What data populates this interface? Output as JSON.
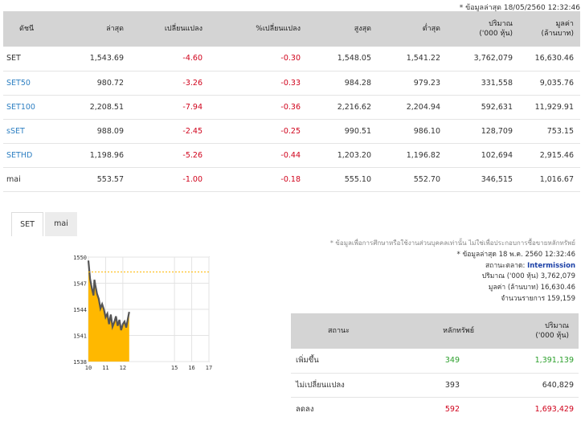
{
  "header_stamp": "* ข้อมูลล่าสุด 18/05/2560 12:32:46",
  "index_table": {
    "columns": [
      "ดัชนี",
      "ล่าสุด",
      "เปลี่ยนแปลง",
      "%เปลี่ยนแปลง",
      "สูงสุด",
      "ต่ำสุด",
      "ปริมาณ\n('000 หุ้น)",
      "มูลค่า\n(ล้านบาท)"
    ],
    "rows": [
      {
        "name": "SET",
        "last": "1,543.69",
        "chg": "-4.60",
        "pct": "-0.30",
        "high": "1,548.05",
        "low": "1,541.22",
        "vol": "3,762,079",
        "val": "16,630.46",
        "link": false
      },
      {
        "name": "SET50",
        "last": "980.72",
        "chg": "-3.26",
        "pct": "-0.33",
        "high": "984.28",
        "low": "979.23",
        "vol": "331,558",
        "val": "9,035.76",
        "link": true
      },
      {
        "name": "SET100",
        "last": "2,208.51",
        "chg": "-7.94",
        "pct": "-0.36",
        "high": "2,216.62",
        "low": "2,204.94",
        "vol": "592,631",
        "val": "11,929.91",
        "link": true
      },
      {
        "name": "sSET",
        "last": "988.09",
        "chg": "-2.45",
        "pct": "-0.25",
        "high": "990.51",
        "low": "986.10",
        "vol": "128,709",
        "val": "753.15",
        "link": true
      },
      {
        "name": "SETHD",
        "last": "1,198.96",
        "chg": "-5.26",
        "pct": "-0.44",
        "high": "1,203.20",
        "low": "1,196.82",
        "vol": "102,694",
        "val": "2,915.46",
        "link": true
      },
      {
        "name": "mai",
        "last": "553.57",
        "chg": "-1.00",
        "pct": "-0.18",
        "high": "555.10",
        "low": "552.70",
        "vol": "346,515",
        "val": "1,016.67",
        "link": false
      }
    ]
  },
  "tabs": {
    "set": "SET",
    "mai": "mai"
  },
  "notes": {
    "disclaimer": "* ข้อมูลเพื่อการศึกษาหรือใช้งานส่วนบุคคลเท่านั้น ไม่ใช่เพื่อประกอบการซื้อขายหลักทรัพย์",
    "last_update": "* ข้อมูลล่าสุด 18 พ.ค. 2560 12:32:46",
    "status_label": "สถานะตลาด:",
    "status_value": "Intermission",
    "volume_label": "ปริมาณ ('000 หุ้น)",
    "volume_value": "3,762,079",
    "value_label": "มูลค่า (ล้านบาท)",
    "value_value": "16,630.46",
    "deals_label": "จำนวนรายการ",
    "deals_value": "159,159"
  },
  "summary_table": {
    "columns": [
      "สถานะ",
      "หลักทรัพย์",
      "ปริมาณ\n('000 หุ้น)"
    ],
    "rows": [
      {
        "label": "เพิ่มขึ้น",
        "count": "349",
        "volume": "1,391,139",
        "tone": "up"
      },
      {
        "label": "ไม่เปลี่ยนแปลง",
        "count": "393",
        "volume": "640,829",
        "tone": "flat"
      },
      {
        "label": "ลดลง",
        "count": "592",
        "volume": "1,693,429",
        "tone": "down"
      }
    ]
  },
  "colors": {
    "area_fill": "#ffb800",
    "line": "#555555",
    "prev_close": "#ffb800",
    "up": "#2ca02c",
    "down": "#d0021b",
    "link": "#2d7fc2"
  },
  "chart_data": {
    "type": "area",
    "title": "",
    "xlabel": "",
    "ylabel": "",
    "x_ticks": [
      "10",
      "11",
      "12",
      "15",
      "16",
      "17"
    ],
    "x_tick_values": [
      10,
      11,
      12,
      15,
      16,
      17
    ],
    "y_ticks": [
      "1550",
      "1547",
      "1544",
      "1541",
      "1538"
    ],
    "y_tick_values": [
      1550,
      1547,
      1544,
      1541,
      1538
    ],
    "xlim": [
      10,
      17
    ],
    "ylim": [
      1538,
      1550
    ],
    "prev_close": 1548.29,
    "grid": true,
    "series": [
      {
        "x": [
          10.0,
          10.1,
          10.2,
          10.3,
          10.35,
          10.4,
          10.5,
          10.6,
          10.7,
          10.8,
          10.9,
          11.0,
          11.1,
          11.2,
          11.3,
          11.4,
          11.5,
          11.6,
          11.7,
          11.8,
          11.9,
          12.0,
          12.1,
          12.2,
          12.3,
          12.37
        ],
        "y": [
          1549.6,
          1547.5,
          1546.4,
          1545.6,
          1547.4,
          1546.8,
          1545.8,
          1545.2,
          1544.1,
          1544.6,
          1544.0,
          1543.1,
          1543.5,
          1542.3,
          1543.4,
          1542.0,
          1542.5,
          1543.2,
          1542.1,
          1542.8,
          1541.6,
          1542.3,
          1542.6,
          1541.9,
          1543.0,
          1543.7
        ]
      }
    ]
  }
}
